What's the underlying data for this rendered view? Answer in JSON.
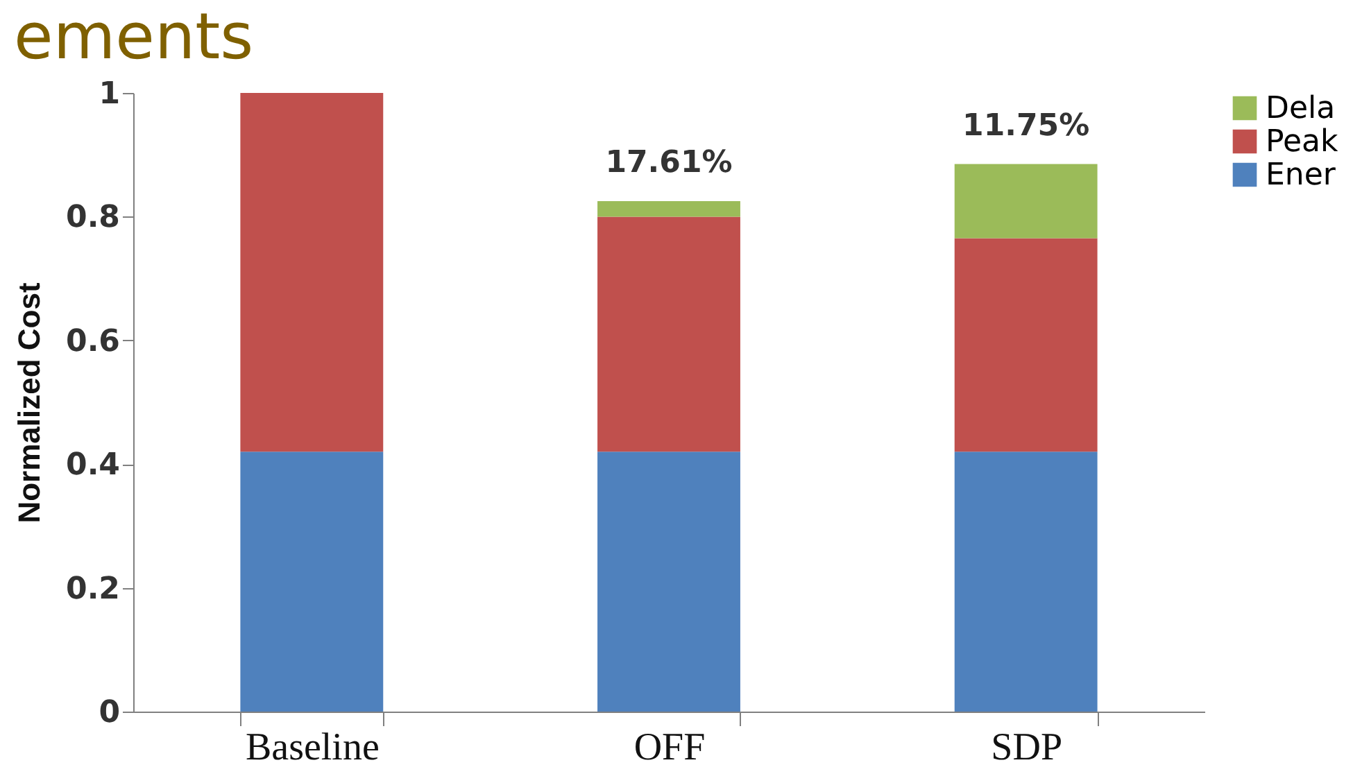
{
  "chart_data": {
    "type": "bar",
    "title": "ements",
    "ylabel": "Normalized Cost",
    "categories": [
      "Baseline",
      "OFF",
      "SDP"
    ],
    "stacked": true,
    "series": [
      {
        "name": "Ener",
        "color": "#4f81bd",
        "values": [
          0.42,
          0.42,
          0.42
        ]
      },
      {
        "name": "Peak",
        "color": "#c0504d",
        "values": [
          0.58,
          0.38,
          0.345
        ]
      },
      {
        "name": "Dela",
        "color": "#9bbb59",
        "values": [
          null,
          0.025,
          0.12
        ]
      }
    ],
    "ylim": [
      0,
      1
    ],
    "yticks": [
      0,
      0.2,
      0.4,
      0.6,
      0.8,
      1
    ],
    "grid": false,
    "legend": "right",
    "annotations": [
      {
        "text": "17.61%",
        "x": "OFF",
        "y": 0.825
      },
      {
        "text": "11.75%",
        "x": "SDP",
        "y": 0.885
      }
    ]
  }
}
